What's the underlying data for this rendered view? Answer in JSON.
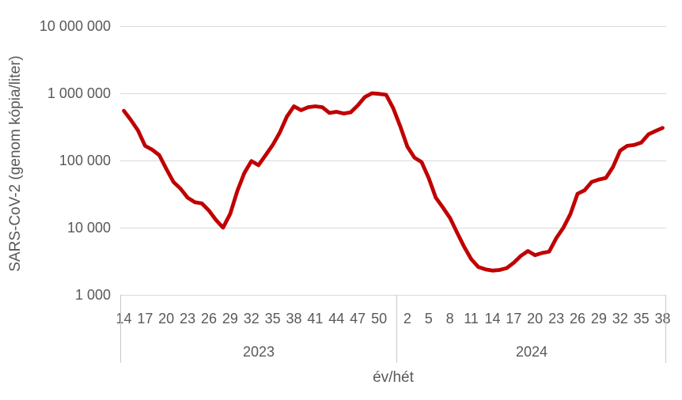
{
  "chart_data": {
    "type": "line",
    "title": "",
    "xlabel": "év/hét",
    "ylabel": "SARS-CoV-2 (genom kópia/liter)",
    "y_scale": "log10",
    "ylim": [
      1000,
      10000000
    ],
    "y_tick_values": [
      10000000,
      1000000,
      100000,
      10000,
      1000
    ],
    "y_tick_labels": [
      "10 000 000",
      "1 000 000",
      "100 000",
      "10 000",
      "1 000"
    ],
    "grid": true,
    "legend_position": "none",
    "line_color": "#C00000",
    "series_name": "SARS-CoV-2 genom kópia/liter",
    "groups": [
      {
        "year": "2023",
        "weeks": [
          14,
          15,
          16,
          17,
          18,
          19,
          20,
          21,
          22,
          23,
          24,
          25,
          26,
          27,
          28,
          29,
          30,
          31,
          32,
          33,
          34,
          35,
          36,
          37,
          38,
          39,
          40,
          41,
          42,
          43,
          44,
          45,
          46,
          47,
          48,
          49,
          50,
          51,
          52
        ],
        "values": [
          550000,
          400000,
          280000,
          165000,
          145000,
          120000,
          75000,
          48000,
          38000,
          28000,
          24000,
          23000,
          18000,
          13000,
          10000,
          16000,
          35000,
          65000,
          98000,
          85000,
          120000,
          170000,
          260000,
          450000,
          640000,
          560000,
          620000,
          640000,
          620000,
          510000,
          530000,
          500000,
          520000,
          660000,
          880000,
          1000000,
          980000,
          950000,
          600000
        ],
        "tick_weeks": [
          14,
          17,
          20,
          23,
          26,
          29,
          32,
          35,
          38,
          41,
          44,
          47,
          50
        ]
      },
      {
        "year": "2024",
        "weeks": [
          1,
          2,
          3,
          4,
          5,
          6,
          7,
          8,
          9,
          10,
          11,
          12,
          13,
          14,
          15,
          16,
          17,
          18,
          19,
          20,
          21,
          22,
          23,
          24,
          25,
          26,
          27,
          28,
          29,
          30,
          31,
          32,
          33,
          34,
          35,
          36,
          37,
          38
        ],
        "values": [
          320000,
          160000,
          110000,
          95000,
          55000,
          28000,
          20000,
          14000,
          8500,
          5200,
          3400,
          2600,
          2400,
          2300,
          2350,
          2500,
          3000,
          3800,
          4500,
          3900,
          4200,
          4400,
          7000,
          10000,
          16000,
          32000,
          36000,
          48000,
          52000,
          55000,
          80000,
          140000,
          165000,
          170000,
          185000,
          245000,
          275000,
          305000
        ],
        "tick_weeks": [
          2,
          5,
          8,
          11,
          14,
          17,
          20,
          23,
          26,
          29,
          32,
          35,
          38
        ]
      }
    ]
  },
  "colors": {
    "line": "#C00000",
    "gridline": "#D9D9D9",
    "axis_separator": "#C9C9C9",
    "text": "#595959",
    "background": "#FFFFFF"
  }
}
